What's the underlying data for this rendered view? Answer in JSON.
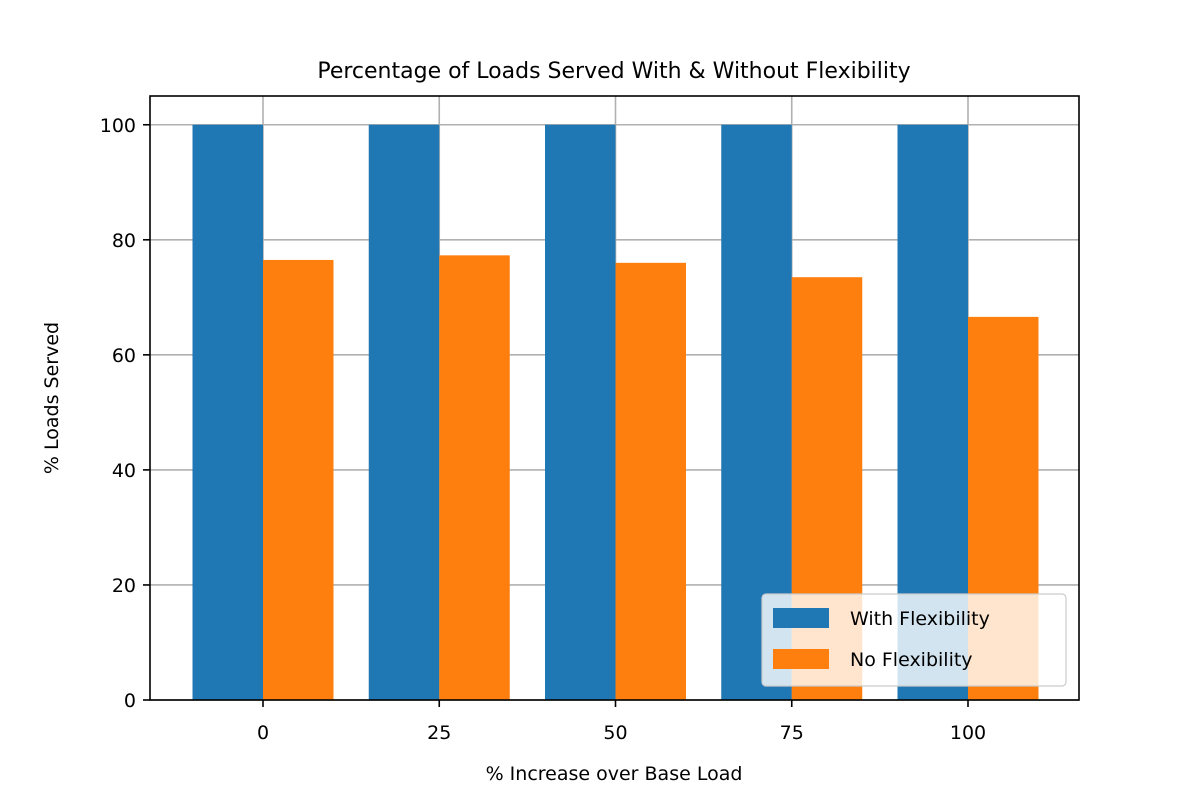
{
  "chart_data": {
    "type": "bar",
    "title": "Percentage of Loads Served With & Without Flexibility",
    "xlabel": "% Increase over Base Load",
    "ylabel": "% Loads Served",
    "categories": [
      "0",
      "25",
      "50",
      "75",
      "100"
    ],
    "series": [
      {
        "name": "With Flexibility",
        "color": "#1f77b4",
        "values": [
          100,
          100,
          100,
          100,
          100
        ]
      },
      {
        "name": "No Flexibility",
        "color": "#ff7f0e",
        "values": [
          76.5,
          77.3,
          76.0,
          73.5,
          66.6
        ]
      }
    ],
    "ylim": [
      0,
      105
    ],
    "yticks": [
      "0",
      "20",
      "40",
      "60",
      "80",
      "100"
    ],
    "grid": true,
    "legend_position": "lower-right"
  }
}
